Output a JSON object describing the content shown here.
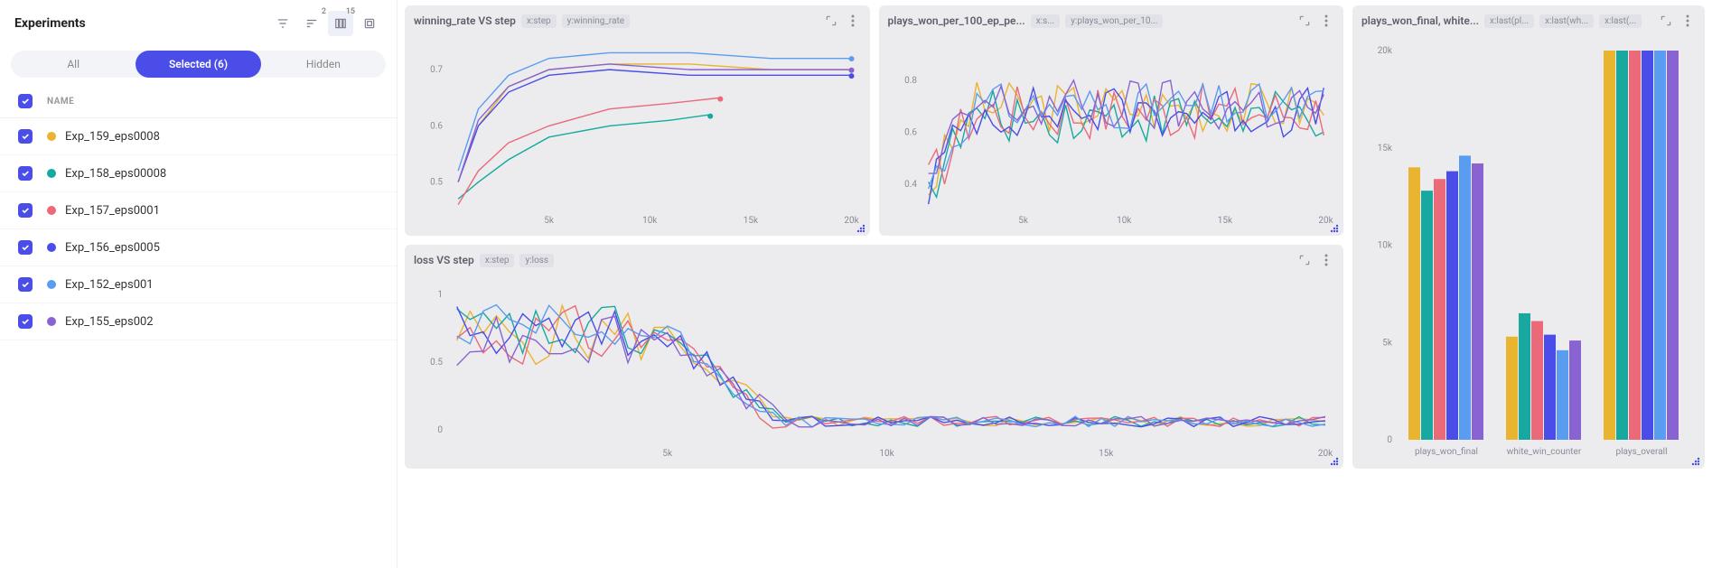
{
  "sidebar": {
    "title": "Experiments",
    "toolbar_icons": [
      "filter-icon",
      "sort-icon",
      "columns-icon",
      "grid-icon"
    ],
    "columns_badge": "15",
    "tabs": {
      "all": "All",
      "selected": "Selected (6)",
      "hidden": "Hidden",
      "active": "selected"
    },
    "list_header": "NAME",
    "colors": {
      "Exp_159_eps0008": "#e9b430",
      "Exp_158_eps00008": "#17a9a0",
      "Exp_157_eps0001": "#ea6a7a",
      "Exp_156_eps0005": "#4a4de7",
      "Exp_152_eps001": "#5a9cf0",
      "Exp_155_eps002": "#8a63d2"
    },
    "experiments": [
      {
        "name": "Exp_159_eps0008",
        "color": "#e9b430"
      },
      {
        "name": "Exp_158_eps00008",
        "color": "#17a9a0"
      },
      {
        "name": "Exp_157_eps0001",
        "color": "#ea6a7a"
      },
      {
        "name": "Exp_156_eps0005",
        "color": "#4a4de7"
      },
      {
        "name": "Exp_152_eps001",
        "color": "#5a9cf0"
      },
      {
        "name": "Exp_155_eps002",
        "color": "#8a63d2"
      }
    ]
  },
  "charts": {
    "background": "#ececef",
    "plot_bg": "#ececef",
    "tick_color": "#8a8a98",
    "line_width": 1.4,
    "winning_rate": {
      "title": "winning_rate VS step",
      "pills": [
        "x:step",
        "y:winning_rate"
      ],
      "type": "line",
      "xlim": [
        0,
        20000
      ],
      "xticks": [
        5000,
        10000,
        15000,
        20000
      ],
      "xticklabels": [
        "5k",
        "10k",
        "15k",
        "20k"
      ],
      "ylim": [
        0.45,
        0.75
      ],
      "yticks": [
        0.5,
        0.6,
        0.7
      ],
      "yticklabels": [
        "0.5",
        "0.6",
        "0.7"
      ],
      "series": [
        {
          "color": "#e9b430",
          "x": [
            500,
            1500,
            3000,
            5000,
            8000,
            12000,
            16000,
            20000
          ],
          "y": [
            0.5,
            0.6,
            0.67,
            0.7,
            0.71,
            0.71,
            0.7,
            0.7
          ]
        },
        {
          "color": "#17a9a0",
          "x": [
            500,
            1500,
            3000,
            5000,
            8000,
            11000,
            13000
          ],
          "y": [
            0.47,
            0.5,
            0.54,
            0.58,
            0.6,
            0.61,
            0.62
          ]
        },
        {
          "color": "#ea6a7a",
          "x": [
            500,
            1500,
            3000,
            5000,
            8000,
            11000,
            13500
          ],
          "y": [
            0.46,
            0.52,
            0.57,
            0.6,
            0.63,
            0.64,
            0.65
          ]
        },
        {
          "color": "#4a4de7",
          "x": [
            500,
            1500,
            3000,
            5000,
            8000,
            12000,
            16000,
            20000
          ],
          "y": [
            0.5,
            0.6,
            0.66,
            0.69,
            0.7,
            0.69,
            0.69,
            0.69
          ]
        },
        {
          "color": "#5a9cf0",
          "x": [
            500,
            1500,
            3000,
            5000,
            8000,
            12000,
            16000,
            20000
          ],
          "y": [
            0.52,
            0.63,
            0.69,
            0.72,
            0.73,
            0.73,
            0.72,
            0.72
          ]
        },
        {
          "color": "#8a63d2",
          "x": [
            500,
            1500,
            3000,
            5000,
            8000,
            12000,
            16000,
            20000
          ],
          "y": [
            0.5,
            0.61,
            0.67,
            0.7,
            0.71,
            0.7,
            0.7,
            0.7
          ]
        }
      ]
    },
    "plays_won_100": {
      "title": "plays_won_per_100_ep_pe...",
      "pills": [
        "x:s...",
        "y:plays_won_per_10..."
      ],
      "type": "line",
      "xlim": [
        0,
        20000
      ],
      "xticks": [
        5000,
        10000,
        15000,
        20000
      ],
      "xticklabels": [
        "5k",
        "10k",
        "15k",
        "20k"
      ],
      "ylim": [
        0.3,
        0.95
      ],
      "yticks": [
        0.4,
        0.6,
        0.8
      ],
      "yticklabels": [
        "0.4",
        "0.6",
        "0.8"
      ],
      "noisy": true,
      "series": [
        {
          "color": "#e9b430",
          "base": 0.7,
          "amp": 0.1
        },
        {
          "color": "#17a9a0",
          "base": 0.66,
          "amp": 0.1
        },
        {
          "color": "#ea6a7a",
          "base": 0.68,
          "amp": 0.11
        },
        {
          "color": "#4a4de7",
          "base": 0.68,
          "amp": 0.1
        },
        {
          "color": "#5a9cf0",
          "base": 0.7,
          "amp": 0.09
        },
        {
          "color": "#8a63d2",
          "base": 0.7,
          "amp": 0.11
        }
      ]
    },
    "loss": {
      "title": "loss VS step",
      "pills": [
        "x:step",
        "y:loss"
      ],
      "type": "line",
      "xlim": [
        0,
        20000
      ],
      "xticks": [
        5000,
        10000,
        15000,
        20000
      ],
      "xticklabels": [
        "5k",
        "10k",
        "15k",
        "20k"
      ],
      "ylim": [
        -0.1,
        1.1
      ],
      "yticks": [
        0,
        0.5,
        1
      ],
      "yticklabels": [
        "0",
        "0.5",
        "1"
      ],
      "decay": true,
      "series": [
        {
          "color": "#e9b430"
        },
        {
          "color": "#17a9a0"
        },
        {
          "color": "#ea6a7a"
        },
        {
          "color": "#4a4de7"
        },
        {
          "color": "#5a9cf0"
        },
        {
          "color": "#8a63d2"
        }
      ]
    },
    "bars": {
      "title": "plays_won_final, white...",
      "pills": [
        "x:last(pl...",
        "x:last(wh...",
        "x:last(..."
      ],
      "type": "bar",
      "ylim": [
        0,
        20000
      ],
      "yticks": [
        0,
        5000,
        10000,
        15000,
        20000
      ],
      "yticklabels": [
        "0",
        "5k",
        "10k",
        "15k",
        "20k"
      ],
      "categories": [
        "plays_won_final",
        "white_win_counter",
        "plays_overall"
      ],
      "groups": [
        {
          "color": "#e9b430",
          "v": [
            14000,
            5300,
            20000
          ]
        },
        {
          "color": "#17a9a0",
          "v": [
            12800,
            6500,
            20000
          ]
        },
        {
          "color": "#ea6a7a",
          "v": [
            13400,
            6100,
            20000
          ]
        },
        {
          "color": "#4a4de7",
          "v": [
            13800,
            5400,
            20000
          ]
        },
        {
          "color": "#5a9cf0",
          "v": [
            14600,
            4600,
            20000
          ]
        },
        {
          "color": "#8a63d2",
          "v": [
            14200,
            5100,
            20000
          ]
        }
      ]
    }
  }
}
